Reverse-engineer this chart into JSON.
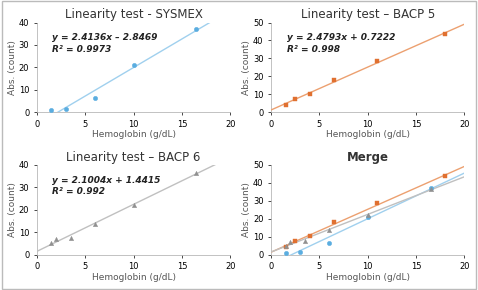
{
  "title_sysmex": "Linearity test - SYSMEX",
  "title_bacp5": "Linearity test – BACP 5",
  "title_bacp6": "Linearity test – BACP 6",
  "title_merge": "Merge",
  "xlabel": "Hemoglobin (g/dL)",
  "ylabel": "Abs. (count)",
  "sysmex_x": [
    1.5,
    3.0,
    6.0,
    10.0,
    16.5
  ],
  "sysmex_y": [
    1.0,
    1.5,
    6.5,
    21.0,
    37.0
  ],
  "sysmex_eq": "y = 2.4136x – 2.8469",
  "sysmex_r2": "R² = 0.9973",
  "sysmex_color": "#5aade0",
  "sysmex_line_color": "#a0d0ee",
  "sysmex_marker": "o",
  "bacp5_x": [
    1.5,
    2.5,
    4.0,
    6.5,
    11.0,
    18.0
  ],
  "bacp5_y": [
    4.0,
    7.5,
    10.5,
    18.0,
    28.5,
    43.5
  ],
  "bacp5_eq": "y = 2.4793x + 0.7222",
  "bacp5_r2": "R² = 0.998",
  "bacp5_color": "#e07030",
  "bacp5_line_color": "#eca070",
  "bacp5_marker": "s",
  "bacp6_x": [
    1.5,
    2.0,
    3.5,
    6.0,
    10.0,
    16.5
  ],
  "bacp6_y": [
    5.0,
    7.0,
    7.5,
    13.5,
    22.0,
    36.5
  ],
  "bacp6_eq": "y = 2.1004x + 1.4415",
  "bacp6_r2": "R² = 0.992",
  "bacp6_color": "#909090",
  "bacp6_line_color": "#c0c0c0",
  "bacp6_marker": "^",
  "xlim": [
    0,
    20
  ],
  "ylim_small": [
    0,
    40
  ],
  "ylim_large": [
    0,
    50
  ],
  "title_fontsize": 8.5,
  "label_fontsize": 6.5,
  "annot_fontsize": 6.5,
  "tick_fontsize": 6,
  "background_color": "#ffffff",
  "border_color": "#cccccc"
}
